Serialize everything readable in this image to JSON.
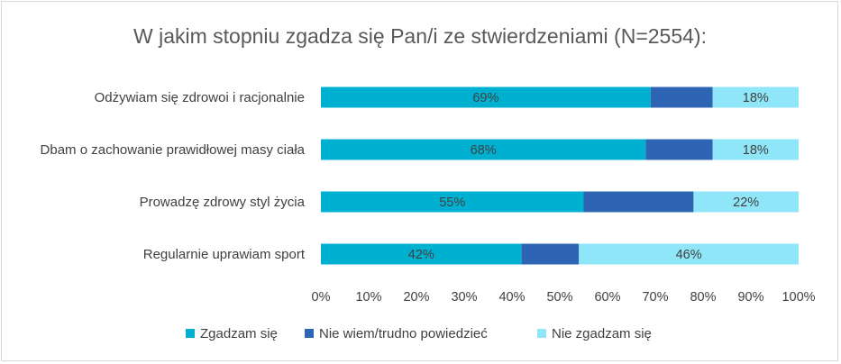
{
  "chart_data": {
    "type": "bar",
    "orientation": "horizontal",
    "stacked": true,
    "title": "W jakim stopniu zgadza się Pan/i ze stwierdzeniami (N=2554):",
    "categories": [
      "Odżywiam się zdrowoi i racjonalnie",
      "Dbam o zachowanie prawidłowej masy ciała",
      "Prowadzę zdrowy styl życia",
      "Regularnie uprawiam sport"
    ],
    "series": [
      {
        "name": "Zgadzam się",
        "color": "#00b0d0",
        "values": [
          69,
          68,
          55,
          42
        ],
        "labels": [
          "69%",
          "68%",
          "55%",
          "42%"
        ]
      },
      {
        "name": "Nie wiem/trudno powiedzieć",
        "color": "#2e64b4",
        "values": [
          13,
          14,
          23,
          12
        ],
        "labels": [
          "",
          "",
          "",
          ""
        ]
      },
      {
        "name": "Nie zgadzam się",
        "color": "#8fe6f8",
        "values": [
          18,
          18,
          22,
          46
        ],
        "labels": [
          "18%",
          "18%",
          "22%",
          "46%"
        ]
      }
    ],
    "xlim": [
      0,
      100
    ],
    "xticks": [
      "0%",
      "10%",
      "20%",
      "30%",
      "40%",
      "50%",
      "60%",
      "70%",
      "80%",
      "90%",
      "100%"
    ],
    "xlabel": "",
    "ylabel": "",
    "grid": false,
    "legend_position": "bottom"
  }
}
